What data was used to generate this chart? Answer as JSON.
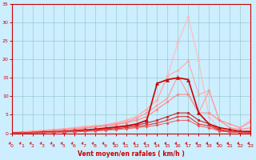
{
  "xlabel": "Vent moyen/en rafales ( km/h )",
  "xlim": [
    0,
    23
  ],
  "ylim": [
    0,
    35
  ],
  "xticks": [
    0,
    1,
    2,
    3,
    4,
    5,
    6,
    7,
    8,
    9,
    10,
    11,
    12,
    13,
    14,
    15,
    16,
    17,
    18,
    19,
    20,
    21,
    22,
    23
  ],
  "yticks": [
    0,
    5,
    10,
    15,
    20,
    25,
    30,
    35
  ],
  "background_color": "#cceeff",
  "grid_color": "#99cccc",
  "series": [
    {
      "x": [
        0,
        1,
        2,
        3,
        4,
        5,
        6,
        7,
        8,
        9,
        10,
        11,
        12,
        13,
        14,
        15,
        16,
        17,
        18,
        19,
        20,
        21,
        22,
        23
      ],
      "y": [
        0.2,
        0.4,
        0.6,
        0.8,
        1.0,
        1.2,
        1.5,
        1.8,
        2.0,
        2.3,
        2.8,
        3.5,
        4.5,
        6.5,
        9.0,
        15.5,
        24.5,
        31.5,
        19.5,
        4.5,
        1.0,
        0.5,
        0.3,
        0.1
      ],
      "color": "#ffbbbb",
      "marker": "D",
      "markersize": 2.0,
      "linewidth": 0.8
    },
    {
      "x": [
        0,
        1,
        2,
        3,
        4,
        5,
        6,
        7,
        8,
        9,
        10,
        11,
        12,
        13,
        14,
        15,
        16,
        17,
        18,
        19,
        20,
        21,
        22,
        23
      ],
      "y": [
        0.2,
        0.4,
        0.6,
        0.8,
        1.0,
        1.2,
        1.5,
        1.8,
        2.0,
        2.3,
        2.8,
        3.5,
        4.5,
        6.5,
        9.0,
        15.5,
        17.0,
        19.5,
        10.5,
        11.5,
        3.5,
        2.5,
        1.5,
        3.5
      ],
      "color": "#ffaaaa",
      "marker": "o",
      "markersize": 2.0,
      "linewidth": 0.8
    },
    {
      "x": [
        0,
        1,
        2,
        3,
        4,
        5,
        6,
        7,
        8,
        9,
        10,
        11,
        12,
        13,
        14,
        15,
        16,
        17,
        18,
        19,
        20,
        21,
        22,
        23
      ],
      "y": [
        0.1,
        0.2,
        0.4,
        0.6,
        0.8,
        1.0,
        1.2,
        1.5,
        1.8,
        2.0,
        2.5,
        3.0,
        4.0,
        5.5,
        7.5,
        9.5,
        15.5,
        10.5,
        5.5,
        11.5,
        3.5,
        2.5,
        1.5,
        3.0
      ],
      "color": "#ff9999",
      "marker": "s",
      "markersize": 2.0,
      "linewidth": 0.8
    },
    {
      "x": [
        0,
        1,
        2,
        3,
        4,
        5,
        6,
        7,
        8,
        9,
        10,
        11,
        12,
        13,
        14,
        15,
        16,
        17,
        18,
        19,
        20,
        21,
        22,
        23
      ],
      "y": [
        0.1,
        0.2,
        0.3,
        0.5,
        0.7,
        0.9,
        1.1,
        1.4,
        1.7,
        2.0,
        2.3,
        2.8,
        3.5,
        4.5,
        6.5,
        8.5,
        10.5,
        10.5,
        5.5,
        5.5,
        3.5,
        1.5,
        1.0,
        1.5
      ],
      "color": "#ff8888",
      "marker": "o",
      "markersize": 2.0,
      "linewidth": 0.8
    },
    {
      "x": [
        0,
        1,
        2,
        3,
        4,
        5,
        6,
        7,
        8,
        9,
        10,
        11,
        12,
        13,
        14,
        15,
        16,
        17,
        18,
        19,
        20,
        21,
        22,
        23
      ],
      "y": [
        0.1,
        0.1,
        0.2,
        0.3,
        0.4,
        0.5,
        0.7,
        0.9,
        1.1,
        1.4,
        1.7,
        2.0,
        2.5,
        3.5,
        13.5,
        14.5,
        15.0,
        14.5,
        5.5,
        2.5,
        1.5,
        1.0,
        0.5,
        0.5
      ],
      "color": "#cc0000",
      "marker": "^",
      "markersize": 3.0,
      "linewidth": 1.2
    },
    {
      "x": [
        0,
        1,
        2,
        3,
        4,
        5,
        6,
        7,
        8,
        9,
        10,
        11,
        12,
        13,
        14,
        15,
        16,
        17,
        18,
        19,
        20,
        21,
        22,
        23
      ],
      "y": [
        0.1,
        0.1,
        0.2,
        0.3,
        0.4,
        0.5,
        0.6,
        0.8,
        1.0,
        1.2,
        1.5,
        1.8,
        2.2,
        2.8,
        3.5,
        4.5,
        5.5,
        5.5,
        3.5,
        2.5,
        1.0,
        0.5,
        0.3,
        0.2
      ],
      "color": "#cc2222",
      "marker": "o",
      "markersize": 2.0,
      "linewidth": 0.8
    },
    {
      "x": [
        0,
        1,
        2,
        3,
        4,
        5,
        6,
        7,
        8,
        9,
        10,
        11,
        12,
        13,
        14,
        15,
        16,
        17,
        18,
        19,
        20,
        21,
        22,
        23
      ],
      "y": [
        0.05,
        0.1,
        0.15,
        0.2,
        0.3,
        0.4,
        0.5,
        0.6,
        0.8,
        1.0,
        1.2,
        1.5,
        1.8,
        2.2,
        2.8,
        3.5,
        4.5,
        4.5,
        2.5,
        2.0,
        0.8,
        0.4,
        0.2,
        0.1
      ],
      "color": "#dd3333",
      "marker": "s",
      "markersize": 2.0,
      "linewidth": 0.8
    },
    {
      "x": [
        0,
        1,
        2,
        3,
        4,
        5,
        6,
        7,
        8,
        9,
        10,
        11,
        12,
        13,
        14,
        15,
        16,
        17,
        18,
        19,
        20,
        21,
        22,
        23
      ],
      "y": [
        0.05,
        0.05,
        0.1,
        0.15,
        0.2,
        0.3,
        0.4,
        0.5,
        0.6,
        0.8,
        1.0,
        1.2,
        1.5,
        1.8,
        2.2,
        2.8,
        3.5,
        3.5,
        2.0,
        1.5,
        0.6,
        0.3,
        0.2,
        0.1
      ],
      "color": "#ee5555",
      "marker": "D",
      "markersize": 1.8,
      "linewidth": 0.7
    }
  ]
}
